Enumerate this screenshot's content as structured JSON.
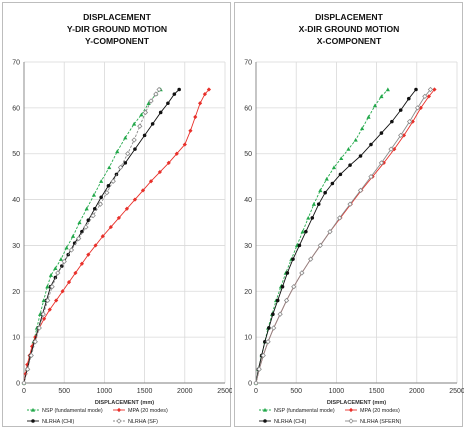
{
  "chart_data": [
    {
      "type": "line",
      "title": [
        "DISPLACEMENT",
        "Y-DIR GROUND MOTION",
        "Y-COMPONENT"
      ],
      "xlabel": "DISPLACEMENT (mm)",
      "ylabel": "",
      "xlim": [
        0,
        2500
      ],
      "ylim": [
        0,
        70
      ],
      "x_ticks": [
        "0",
        "500",
        "1000",
        "1500",
        "2000",
        "2500"
      ],
      "y_ticks": [
        "0",
        "10",
        "20",
        "30",
        "40",
        "50",
        "60",
        "70"
      ],
      "grid": true,
      "legend_position": "bottom",
      "series": [
        {
          "name": "NSP (fundamental mode)",
          "color": "#22a84a",
          "marker": "triangle",
          "line_style": "dashed",
          "points": [
            [
              0,
              0
            ],
            [
              40,
              3
            ],
            [
              80,
              6
            ],
            [
              120,
              9
            ],
            [
              160,
              12
            ],
            [
              200,
              15
            ],
            [
              245,
              18
            ],
            [
              290,
              21
            ],
            [
              335,
              23.5
            ],
            [
              390,
              25
            ],
            [
              460,
              27
            ],
            [
              530,
              29.5
            ],
            [
              610,
              32
            ],
            [
              690,
              35
            ],
            [
              780,
              38
            ],
            [
              870,
              41
            ],
            [
              960,
              44
            ],
            [
              1060,
              47
            ],
            [
              1160,
              50.5
            ],
            [
              1260,
              53.5
            ],
            [
              1370,
              56.5
            ],
            [
              1460,
              58.5
            ],
            [
              1550,
              61
            ],
            [
              1640,
              63
            ],
            [
              1700,
              64
            ]
          ]
        },
        {
          "name": "MPA (20 modes)",
          "color": "#e8302a",
          "marker": "diamond",
          "line_style": "solid",
          "points": [
            [
              0,
              0
            ],
            [
              20,
              2
            ],
            [
              40,
              4
            ],
            [
              70,
              6
            ],
            [
              100,
              8
            ],
            [
              140,
              10
            ],
            [
              190,
              12
            ],
            [
              250,
              14
            ],
            [
              320,
              16
            ],
            [
              400,
              18
            ],
            [
              480,
              20
            ],
            [
              560,
              22
            ],
            [
              640,
              24
            ],
            [
              720,
              26
            ],
            [
              800,
              28
            ],
            [
              890,
              30
            ],
            [
              980,
              32
            ],
            [
              1080,
              34
            ],
            [
              1180,
              36
            ],
            [
              1280,
              38
            ],
            [
              1380,
              40
            ],
            [
              1480,
              42
            ],
            [
              1580,
              44
            ],
            [
              1690,
              46
            ],
            [
              1800,
              48
            ],
            [
              1900,
              50
            ],
            [
              2000,
              52
            ],
            [
              2070,
              55
            ],
            [
              2130,
              58
            ],
            [
              2190,
              61
            ],
            [
              2250,
              63
            ],
            [
              2300,
              64
            ]
          ]
        },
        {
          "name": "NLRHA (CHI)",
          "color": "#111111",
          "marker": "circle",
          "line_style": "solid",
          "points": [
            [
              0,
              0
            ],
            [
              40,
              3
            ],
            [
              80,
              6
            ],
            [
              130,
              9
            ],
            [
              180,
              12
            ],
            [
              230,
              15
            ],
            [
              280,
              18
            ],
            [
              330,
              21
            ],
            [
              390,
              23
            ],
            [
              470,
              25.5
            ],
            [
              550,
              28
            ],
            [
              630,
              30.5
            ],
            [
              720,
              33
            ],
            [
              800,
              35.5
            ],
            [
              880,
              38
            ],
            [
              960,
              40.5
            ],
            [
              1050,
              43
            ],
            [
              1150,
              45.5
            ],
            [
              1260,
              48
            ],
            [
              1380,
              51
            ],
            [
              1500,
              54
            ],
            [
              1600,
              56.5
            ],
            [
              1700,
              59
            ],
            [
              1790,
              61
            ],
            [
              1870,
              63
            ],
            [
              1930,
              64
            ]
          ]
        },
        {
          "name": "NLRHA (SF)",
          "color": "#8a8a8a",
          "marker": "open-diamond",
          "line_style": "dashed",
          "points": [
            [
              0,
              0
            ],
            [
              45,
              3
            ],
            [
              90,
              6
            ],
            [
              140,
              9
            ],
            [
              190,
              12
            ],
            [
              240,
              15
            ],
            [
              295,
              18
            ],
            [
              350,
              21
            ],
            [
              420,
              24
            ],
            [
              500,
              26.5
            ],
            [
              590,
              29
            ],
            [
              680,
              31.5
            ],
            [
              770,
              34
            ],
            [
              860,
              36.5
            ],
            [
              950,
              39
            ],
            [
              1030,
              41.5
            ],
            [
              1110,
              44
            ],
            [
              1200,
              47
            ],
            [
              1290,
              50
            ],
            [
              1370,
              53
            ],
            [
              1440,
              56
            ],
            [
              1510,
              59
            ],
            [
              1580,
              61.5
            ],
            [
              1640,
              63
            ],
            [
              1680,
              64
            ]
          ]
        }
      ]
    },
    {
      "type": "line",
      "title": [
        "DISPLACEMENT",
        "X-DIR GROUND MOTION",
        "X-COMPONENT"
      ],
      "xlabel": "DISPLACEMENT (mm)",
      "ylabel": "",
      "xlim": [
        0,
        2500
      ],
      "ylim": [
        0,
        70
      ],
      "x_ticks": [
        "0",
        "500",
        "1000",
        "1500",
        "2000",
        "2500"
      ],
      "y_ticks": [
        "0",
        "10",
        "20",
        "30",
        "40",
        "50",
        "60",
        "70"
      ],
      "grid": true,
      "legend_position": "bottom",
      "series": [
        {
          "name": "NSP (fundamental mode)",
          "color": "#22a84a",
          "marker": "triangle",
          "line_style": "dashed",
          "points": [
            [
              0,
              0
            ],
            [
              30,
              3
            ],
            [
              70,
              6
            ],
            [
              110,
              9
            ],
            [
              150,
              12
            ],
            [
              200,
              15
            ],
            [
              250,
              18
            ],
            [
              310,
              21
            ],
            [
              370,
              24
            ],
            [
              440,
              27
            ],
            [
              510,
              30
            ],
            [
              580,
              33
            ],
            [
              650,
              36
            ],
            [
              720,
              39
            ],
            [
              800,
              42
            ],
            [
              880,
              44.5
            ],
            [
              970,
              47
            ],
            [
              1060,
              49
            ],
            [
              1150,
              51
            ],
            [
              1240,
              53
            ],
            [
              1320,
              55.5
            ],
            [
              1400,
              58
            ],
            [
              1480,
              60.5
            ],
            [
              1560,
              62.5
            ],
            [
              1640,
              64
            ]
          ]
        },
        {
          "name": "MPA (20 modes)",
          "color": "#e8302a",
          "marker": "diamond",
          "line_style": "solid",
          "points": [
            [
              0,
              0
            ],
            [
              40,
              3
            ],
            [
              90,
              6
            ],
            [
              150,
              9
            ],
            [
              220,
              12
            ],
            [
              300,
              15
            ],
            [
              380,
              18
            ],
            [
              470,
              21
            ],
            [
              570,
              24
            ],
            [
              680,
              27
            ],
            [
              800,
              30
            ],
            [
              920,
              33
            ],
            [
              1050,
              36
            ],
            [
              1180,
              39
            ],
            [
              1310,
              42
            ],
            [
              1450,
              45
            ],
            [
              1590,
              48
            ],
            [
              1720,
              51
            ],
            [
              1840,
              54
            ],
            [
              1950,
              57
            ],
            [
              2050,
              60
            ],
            [
              2150,
              62.5
            ],
            [
              2220,
              64
            ]
          ]
        },
        {
          "name": "NLRHA (CHI)",
          "color": "#111111",
          "marker": "circle",
          "line_style": "solid",
          "points": [
            [
              0,
              0
            ],
            [
              30,
              3
            ],
            [
              70,
              6
            ],
            [
              110,
              9
            ],
            [
              160,
              12
            ],
            [
              210,
              15
            ],
            [
              270,
              18
            ],
            [
              330,
              21
            ],
            [
              390,
              24
            ],
            [
              460,
              27
            ],
            [
              540,
              30
            ],
            [
              620,
              33
            ],
            [
              700,
              36
            ],
            [
              780,
              39
            ],
            [
              860,
              41.5
            ],
            [
              950,
              43.5
            ],
            [
              1050,
              45.5
            ],
            [
              1170,
              47.5
            ],
            [
              1300,
              49.5
            ],
            [
              1430,
              52
            ],
            [
              1560,
              54.5
            ],
            [
              1690,
              57
            ],
            [
              1800,
              59.5
            ],
            [
              1900,
              62
            ],
            [
              1990,
              64
            ]
          ]
        },
        {
          "name": "NLRHA (SFERN)",
          "color": "#8a8a8a",
          "marker": "open-diamond",
          "line_style": "solid",
          "points": [
            [
              0,
              0
            ],
            [
              40,
              3
            ],
            [
              90,
              6
            ],
            [
              150,
              9
            ],
            [
              220,
              12
            ],
            [
              300,
              15
            ],
            [
              380,
              18
            ],
            [
              470,
              21
            ],
            [
              570,
              24
            ],
            [
              680,
              27
            ],
            [
              800,
              30
            ],
            [
              920,
              33
            ],
            [
              1040,
              36
            ],
            [
              1170,
              39
            ],
            [
              1300,
              42
            ],
            [
              1430,
              45
            ],
            [
              1560,
              48
            ],
            [
              1680,
              51
            ],
            [
              1800,
              54
            ],
            [
              1910,
              57
            ],
            [
              2010,
              60
            ],
            [
              2100,
              62.5
            ],
            [
              2170,
              64
            ]
          ]
        }
      ]
    }
  ]
}
